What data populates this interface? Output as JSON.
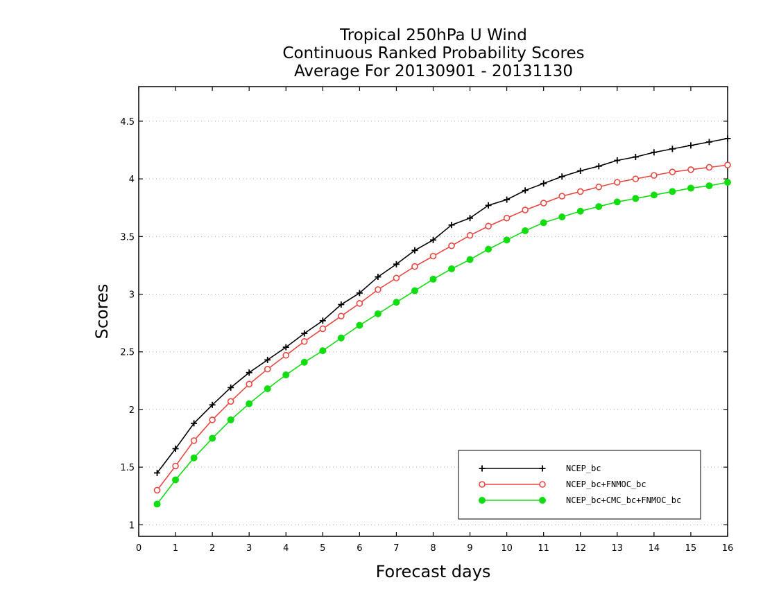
{
  "chart_data": {
    "type": "line",
    "title_lines": [
      "Tropical 250hPa U Wind",
      "Continuous Ranked Probability Scores",
      "Average For 20130901 - 20131130"
    ],
    "xlabel": "Forecast days",
    "ylabel": "Scores",
    "xlim": [
      0,
      16
    ],
    "ylim": [
      0.9,
      4.8
    ],
    "xticks": [
      "0",
      "1",
      "2",
      "3",
      "4",
      "5",
      "6",
      "7",
      "8",
      "9",
      "10",
      "11",
      "12",
      "13",
      "14",
      "15",
      "16"
    ],
    "yticks": [
      "1",
      "1.5",
      "2",
      "2.5",
      "3",
      "3.5",
      "4",
      "4.5"
    ],
    "grid": "horizontal dotted",
    "legend_position": "bottom-right",
    "x": [
      0.5,
      1,
      1.5,
      2,
      2.5,
      3,
      3.5,
      4,
      4.5,
      5,
      5.5,
      6,
      6.5,
      7,
      7.5,
      8,
      8.5,
      9,
      9.5,
      10,
      10.5,
      11,
      11.5,
      12,
      12.5,
      13,
      13.5,
      14,
      14.5,
      15,
      15.5,
      16
    ],
    "series": [
      {
        "name": "NCEP_bc",
        "color": "#000000",
        "marker": "plus",
        "values": [
          1.45,
          1.66,
          1.88,
          2.04,
          2.19,
          2.32,
          2.43,
          2.54,
          2.66,
          2.77,
          2.91,
          3.01,
          3.15,
          3.26,
          3.38,
          3.47,
          3.6,
          3.66,
          3.77,
          3.82,
          3.9,
          3.96,
          4.02,
          4.07,
          4.11,
          4.16,
          4.19,
          4.23,
          4.26,
          4.29,
          4.32,
          4.35
        ]
      },
      {
        "name": "NCEP_bc+FNMOC_bc",
        "color": "#e8473f",
        "marker": "open-circle",
        "values": [
          1.3,
          1.51,
          1.73,
          1.91,
          2.07,
          2.22,
          2.35,
          2.47,
          2.59,
          2.7,
          2.81,
          2.92,
          3.04,
          3.14,
          3.24,
          3.33,
          3.42,
          3.51,
          3.59,
          3.66,
          3.73,
          3.79,
          3.85,
          3.89,
          3.93,
          3.97,
          4.0,
          4.03,
          4.06,
          4.08,
          4.1,
          4.12
        ]
      },
      {
        "name": "NCEP_bc+CMC_bc+FNMOC_bc",
        "color": "#11dd11",
        "marker": "filled-circle",
        "values": [
          1.18,
          1.39,
          1.58,
          1.75,
          1.91,
          2.05,
          2.18,
          2.3,
          2.41,
          2.51,
          2.62,
          2.73,
          2.83,
          2.93,
          3.03,
          3.13,
          3.22,
          3.3,
          3.39,
          3.47,
          3.55,
          3.62,
          3.67,
          3.72,
          3.76,
          3.8,
          3.83,
          3.86,
          3.89,
          3.92,
          3.94,
          3.97
        ]
      }
    ]
  }
}
